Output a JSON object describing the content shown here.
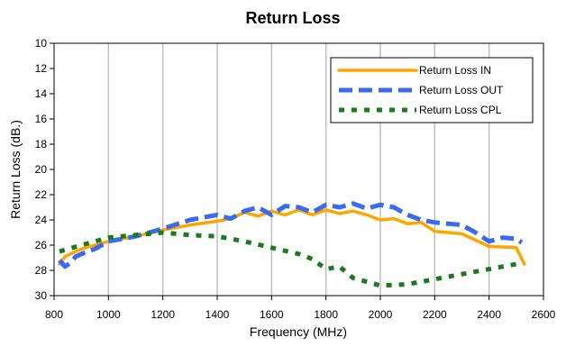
{
  "chart_data": {
    "type": "line",
    "title": "Return Loss",
    "xlabel": "Frequency (MHz)",
    "ylabel": "Return Loss (dB.)",
    "xlim": [
      800,
      2600
    ],
    "ylim": [
      10,
      30
    ],
    "y_inverted": true,
    "x_ticks": [
      800,
      1000,
      1200,
      1400,
      1600,
      1800,
      2000,
      2200,
      2400,
      2600
    ],
    "y_ticks": [
      10,
      12,
      14,
      16,
      18,
      20,
      22,
      24,
      26,
      28,
      30
    ],
    "grid": "vertical",
    "legend_position": "top-right",
    "series": [
      {
        "name": "Return Loss IN",
        "color": "#FFA500",
        "style": "solid",
        "x": [
          820,
          840,
          870,
          900,
          950,
          1000,
          1100,
          1200,
          1300,
          1400,
          1450,
          1500,
          1550,
          1600,
          1650,
          1700,
          1750,
          1800,
          1850,
          1900,
          1950,
          2000,
          2050,
          2100,
          2150,
          2200,
          2300,
          2350,
          2400,
          2500,
          2530
        ],
        "y": [
          27.5,
          26.9,
          26.6,
          26.3,
          26.0,
          25.7,
          25.3,
          24.8,
          24.4,
          24.1,
          23.9,
          23.4,
          23.7,
          23.3,
          23.6,
          23.2,
          23.6,
          23.2,
          23.5,
          23.3,
          23.6,
          24.0,
          23.9,
          24.3,
          24.2,
          24.9,
          25.1,
          25.6,
          26.1,
          26.2,
          27.5
        ]
      },
      {
        "name": "Return Loss OUT",
        "color": "#3A6BEF",
        "style": "dash",
        "x": [
          820,
          840,
          860,
          880,
          900,
          950,
          1000,
          1100,
          1200,
          1300,
          1400,
          1450,
          1500,
          1550,
          1600,
          1650,
          1700,
          1750,
          1800,
          1850,
          1900,
          1950,
          2000,
          2050,
          2100,
          2150,
          2200,
          2300,
          2350,
          2400,
          2450,
          2500,
          2520
        ],
        "y": [
          27.2,
          27.7,
          27.4,
          26.9,
          26.7,
          26.3,
          25.7,
          25.3,
          24.7,
          24.0,
          23.6,
          23.9,
          23.3,
          23.0,
          23.6,
          22.9,
          23.0,
          23.4,
          22.8,
          23.0,
          22.7,
          23.1,
          22.8,
          23.0,
          23.6,
          24.0,
          24.2,
          24.4,
          25.0,
          25.7,
          25.4,
          25.5,
          25.8
        ]
      },
      {
        "name": "Return Loss CPL",
        "color": "#1C7A1C",
        "style": "dot",
        "x": [
          820,
          900,
          1000,
          1100,
          1200,
          1300,
          1400,
          1500,
          1600,
          1700,
          1750,
          1800,
          1850,
          1900,
          2000,
          2100,
          2200,
          2300,
          2400,
          2500,
          2520
        ],
        "y": [
          26.5,
          26.0,
          25.4,
          25.2,
          25.0,
          25.2,
          25.3,
          25.7,
          26.2,
          26.7,
          27.1,
          27.9,
          27.7,
          28.6,
          29.2,
          29.1,
          28.7,
          28.3,
          27.9,
          27.5,
          27.4
        ]
      }
    ]
  }
}
